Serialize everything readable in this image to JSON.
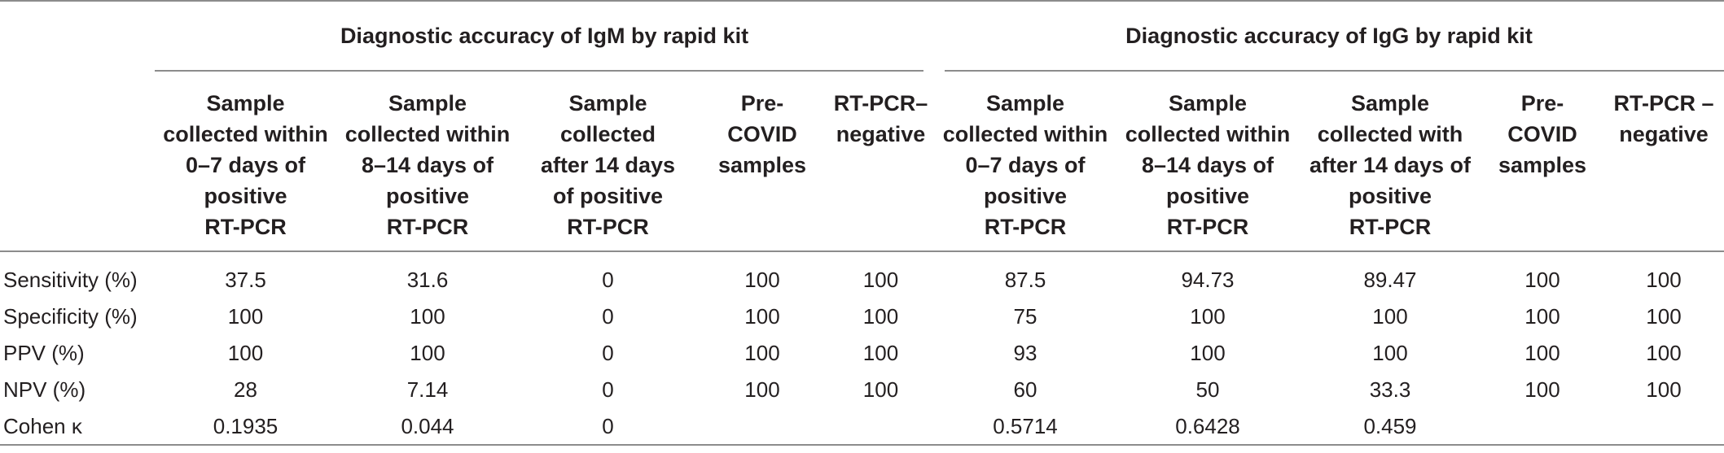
{
  "table": {
    "group_headers": [
      "Diagnostic accuracy of IgM by rapid kit",
      "Diagnostic accuracy of IgG by rapid kit"
    ],
    "column_headers": [
      [
        "Sample",
        "collected within",
        "0–7 days of",
        "positive",
        "RT-PCR"
      ],
      [
        "Sample",
        "collected within",
        "8–14 days of",
        "positive",
        "RT-PCR"
      ],
      [
        "Sample",
        "collected",
        "after 14 days",
        "of positive",
        "RT-PCR"
      ],
      [
        "Pre-",
        "COVID",
        "samples"
      ],
      [
        "RT-PCR–",
        "negative"
      ],
      [
        "Sample",
        "collected within",
        "0–7 days of",
        "positive",
        "RT-PCR"
      ],
      [
        "Sample",
        "collected within",
        "8–14 days of",
        "positive",
        "RT-PCR"
      ],
      [
        "Sample",
        "collected with",
        "after 14 days of",
        "positive",
        "RT-PCR"
      ],
      [
        "Pre-",
        "COVID",
        "samples"
      ],
      [
        "RT-PCR –",
        "negative"
      ]
    ],
    "rows": [
      {
        "label": "Sensitivity (%)",
        "values": [
          "37.5",
          "31.6",
          "0",
          "100",
          "100",
          "87.5",
          "94.73",
          "89.47",
          "100",
          "100"
        ]
      },
      {
        "label": "Specificity (%)",
        "values": [
          "100",
          "100",
          "0",
          "100",
          "100",
          "75",
          "100",
          "100",
          "100",
          "100"
        ]
      },
      {
        "label": "PPV (%)",
        "values": [
          "100",
          "100",
          "0",
          "100",
          "100",
          "93",
          "100",
          "100",
          "100",
          "100"
        ]
      },
      {
        "label": "NPV (%)",
        "values": [
          "28",
          "7.14",
          "0",
          "100",
          "100",
          "60",
          "50",
          "33.3",
          "100",
          "100"
        ]
      },
      {
        "label": "Cohen κ",
        "values": [
          "0.1935",
          "0.044",
          "0",
          "",
          "",
          "0.5714",
          "0.6428",
          "0.459",
          "",
          ""
        ]
      }
    ]
  }
}
